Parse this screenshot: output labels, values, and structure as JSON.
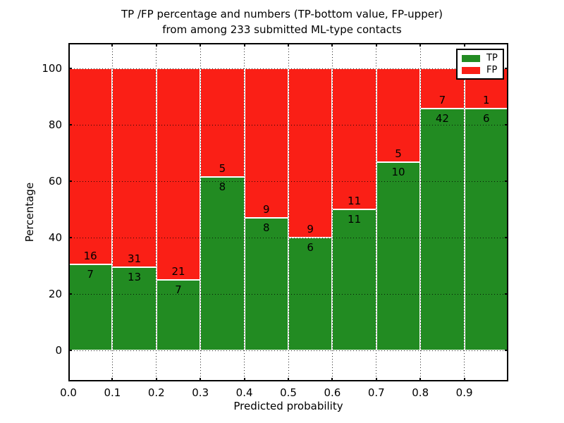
{
  "chart_data": {
    "type": "bar",
    "stacked": true,
    "title_line1": "TP /FP percentage and numbers (TP-bottom value, FP-upper)",
    "title_line2": "from among 233 submitted ML-type contacts",
    "total_contacts": 233,
    "xlabel": "Predicted probability",
    "ylabel": "Percentage",
    "xlim": [
      0.0,
      1.0
    ],
    "ylim": [
      -11,
      109
    ],
    "yticks": [
      0,
      20,
      40,
      60,
      80,
      100
    ],
    "xticks": [
      "0.0",
      "0.1",
      "0.2",
      "0.3",
      "0.4",
      "0.5",
      "0.6",
      "0.7",
      "0.8",
      "0.9"
    ],
    "grid": true,
    "legend": {
      "position": "upper right",
      "entries": [
        {
          "label": "TP",
          "color": "#228b22"
        },
        {
          "label": "FP",
          "color": "#fa1f16"
        }
      ]
    },
    "colors": {
      "tp": "#228b22",
      "fp": "#fa1f16",
      "bar_edge": "#ffffff",
      "grid": "#000000"
    },
    "bars": [
      {
        "bin": "0.0-0.1",
        "tp": 7,
        "fp": 16,
        "tp_pct": 30.4,
        "fp_pct": 69.6
      },
      {
        "bin": "0.1-0.2",
        "tp": 13,
        "fp": 31,
        "tp_pct": 29.5,
        "fp_pct": 70.5
      },
      {
        "bin": "0.2-0.3",
        "tp": 7,
        "fp": 21,
        "tp_pct": 25.0,
        "fp_pct": 75.0
      },
      {
        "bin": "0.3-0.4",
        "tp": 8,
        "fp": 5,
        "tp_pct": 61.5,
        "fp_pct": 38.5
      },
      {
        "bin": "0.4-0.5",
        "tp": 8,
        "fp": 9,
        "tp_pct": 47.1,
        "fp_pct": 52.9
      },
      {
        "bin": "0.5-0.6",
        "tp": 6,
        "fp": 9,
        "tp_pct": 40.0,
        "fp_pct": 60.0
      },
      {
        "bin": "0.6-0.7",
        "tp": 11,
        "fp": 11,
        "tp_pct": 50.0,
        "fp_pct": 50.0
      },
      {
        "bin": "0.7-0.8",
        "tp": 10,
        "fp": 5,
        "tp_pct": 66.7,
        "fp_pct": 33.3
      },
      {
        "bin": "0.8-0.9",
        "tp": 42,
        "fp": 7,
        "tp_pct": 85.7,
        "fp_pct": 14.3
      },
      {
        "bin": "0.9-1.0",
        "tp": 6,
        "fp": 1,
        "tp_pct": 85.7,
        "fp_pct": 14.3
      }
    ]
  }
}
